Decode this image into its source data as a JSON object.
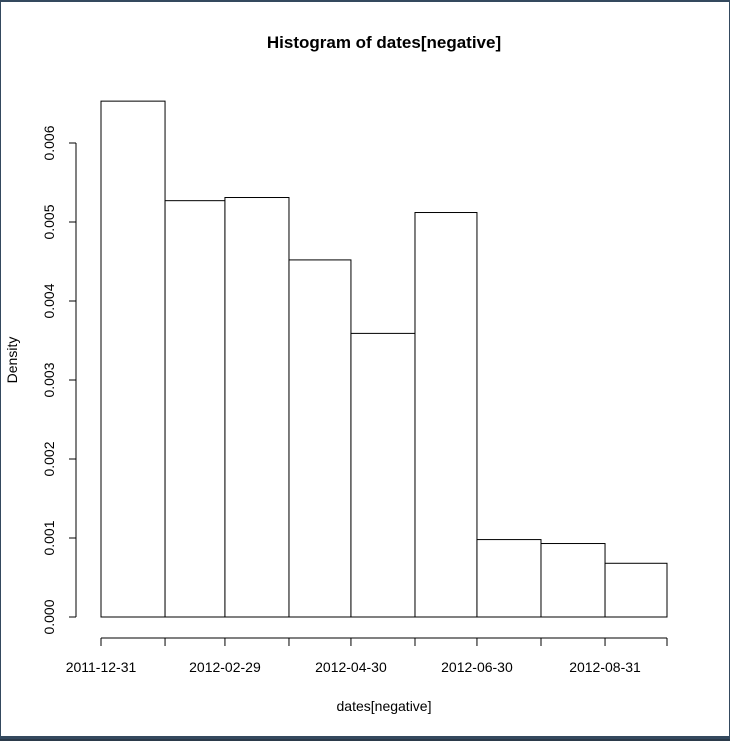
{
  "chart_data": {
    "type": "bar",
    "title": "Histogram of dates[negative]",
    "xlabel": "dates[negative]",
    "ylabel": "Density",
    "x_tick_labels": [
      "2011-12-31",
      "2012-02-29",
      "2012-04-30",
      "2012-06-30",
      "2012-08-31"
    ],
    "y_tick_labels": [
      "0.000",
      "0.001",
      "0.002",
      "0.003",
      "0.004",
      "0.005",
      "0.006"
    ],
    "ylim": [
      0,
      0.0065
    ],
    "bins": [
      {
        "start": "2011-12-31",
        "end": "2012-01-31",
        "density": 0.00653
      },
      {
        "start": "2012-01-31",
        "end": "2012-02-29",
        "density": 0.00527
      },
      {
        "start": "2012-02-29",
        "end": "2012-03-31",
        "density": 0.00531
      },
      {
        "start": "2012-03-31",
        "end": "2012-04-30",
        "density": 0.00452
      },
      {
        "start": "2012-04-30",
        "end": "2012-05-31",
        "density": 0.00359
      },
      {
        "start": "2012-05-31",
        "end": "2012-06-30",
        "density": 0.00512
      },
      {
        "start": "2012-06-30",
        "end": "2012-07-31",
        "density": 0.00098
      },
      {
        "start": "2012-07-31",
        "end": "2012-08-31",
        "density": 0.00093
      },
      {
        "start": "2012-08-31",
        "end": "2012-09-30",
        "density": 0.00068
      }
    ],
    "colors": {
      "fill": "#ffffff",
      "stroke": "#000000"
    },
    "grid": false,
    "legend": "none"
  }
}
